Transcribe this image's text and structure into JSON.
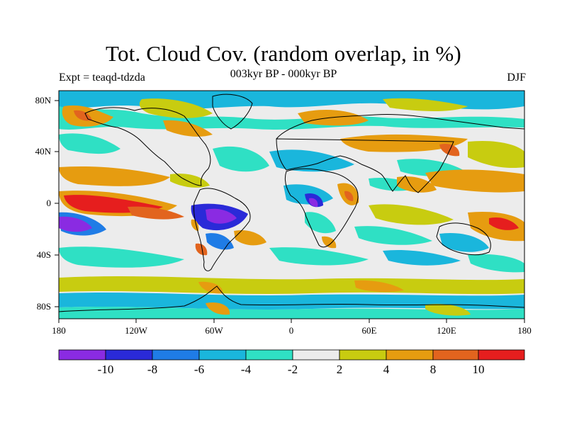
{
  "title": "Tot. Cloud Cov. (random overlap, in %)",
  "subtitle_left": "Expt = teaqd-tdzda",
  "subtitle_center": "003kyr BP - 000kyr BP",
  "subtitle_right": "DJF",
  "lon_ticks": [
    "180",
    "120W",
    "60W",
    "0",
    "60E",
    "120E",
    "180"
  ],
  "lat_ticks": [
    "80N",
    "40N",
    "0",
    "40S",
    "80S"
  ],
  "colorbar": {
    "colors": [
      "#8a2be2",
      "#2a2ad8",
      "#1f7ce6",
      "#1ab6dc",
      "#2fe0c4",
      "#ececec",
      "#c8cc10",
      "#e69c10",
      "#e2641e",
      "#e61e1e"
    ],
    "labels": [
      "-10",
      "-8",
      "-6",
      "-4",
      "-2",
      "2",
      "4",
      "8",
      "10"
    ]
  },
  "colors": {
    "purple": "#8a2be2",
    "blue": "#2a2ad8",
    "mid_blue": "#1f7ce6",
    "sky": "#1ab6dc",
    "teal": "#2fe0c4",
    "neutral": "#ececec",
    "olive": "#c8cc10",
    "orange": "#e69c10",
    "dark_orange": "#e2641e",
    "red": "#e61e1e"
  }
}
